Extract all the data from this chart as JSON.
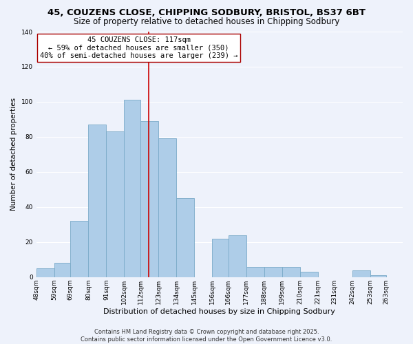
{
  "title": "45, COUZENS CLOSE, CHIPPING SODBURY, BRISTOL, BS37 6BT",
  "subtitle": "Size of property relative to detached houses in Chipping Sodbury",
  "xlabel": "Distribution of detached houses by size in Chipping Sodbury",
  "ylabel": "Number of detached properties",
  "bin_labels": [
    "48sqm",
    "59sqm",
    "69sqm",
    "80sqm",
    "91sqm",
    "102sqm",
    "112sqm",
    "123sqm",
    "134sqm",
    "145sqm",
    "156sqm",
    "166sqm",
    "177sqm",
    "188sqm",
    "199sqm",
    "210sqm",
    "221sqm",
    "231sqm",
    "242sqm",
    "253sqm",
    "263sqm"
  ],
  "bin_edges": [
    48,
    59,
    69,
    80,
    91,
    102,
    112,
    123,
    134,
    145,
    156,
    166,
    177,
    188,
    199,
    210,
    221,
    231,
    242,
    253,
    263
  ],
  "counts": [
    5,
    8,
    32,
    87,
    83,
    101,
    89,
    79,
    45,
    0,
    22,
    24,
    6,
    6,
    6,
    3,
    0,
    0,
    4,
    1,
    0
  ],
  "bar_color": "#aecde8",
  "bar_edgecolor": "#7aaac8",
  "vline_x": 117,
  "vline_color": "#cc0000",
  "annotation_line1": "45 COUZENS CLOSE: 117sqm",
  "annotation_line2": "← 59% of detached houses are smaller (350)",
  "annotation_line3": "40% of semi-detached houses are larger (239) →",
  "ylim": [
    0,
    140
  ],
  "yticks": [
    0,
    20,
    40,
    60,
    80,
    100,
    120,
    140
  ],
  "footer_text": "Contains HM Land Registry data © Crown copyright and database right 2025.\nContains public sector information licensed under the Open Government Licence v3.0.",
  "bg_color": "#eef2fb",
  "grid_color": "#ffffff",
  "title_fontsize": 9.5,
  "subtitle_fontsize": 8.5,
  "xlabel_fontsize": 8,
  "ylabel_fontsize": 7.5,
  "tick_fontsize": 6.5,
  "annotation_fontsize": 7.5,
  "footer_fontsize": 6
}
